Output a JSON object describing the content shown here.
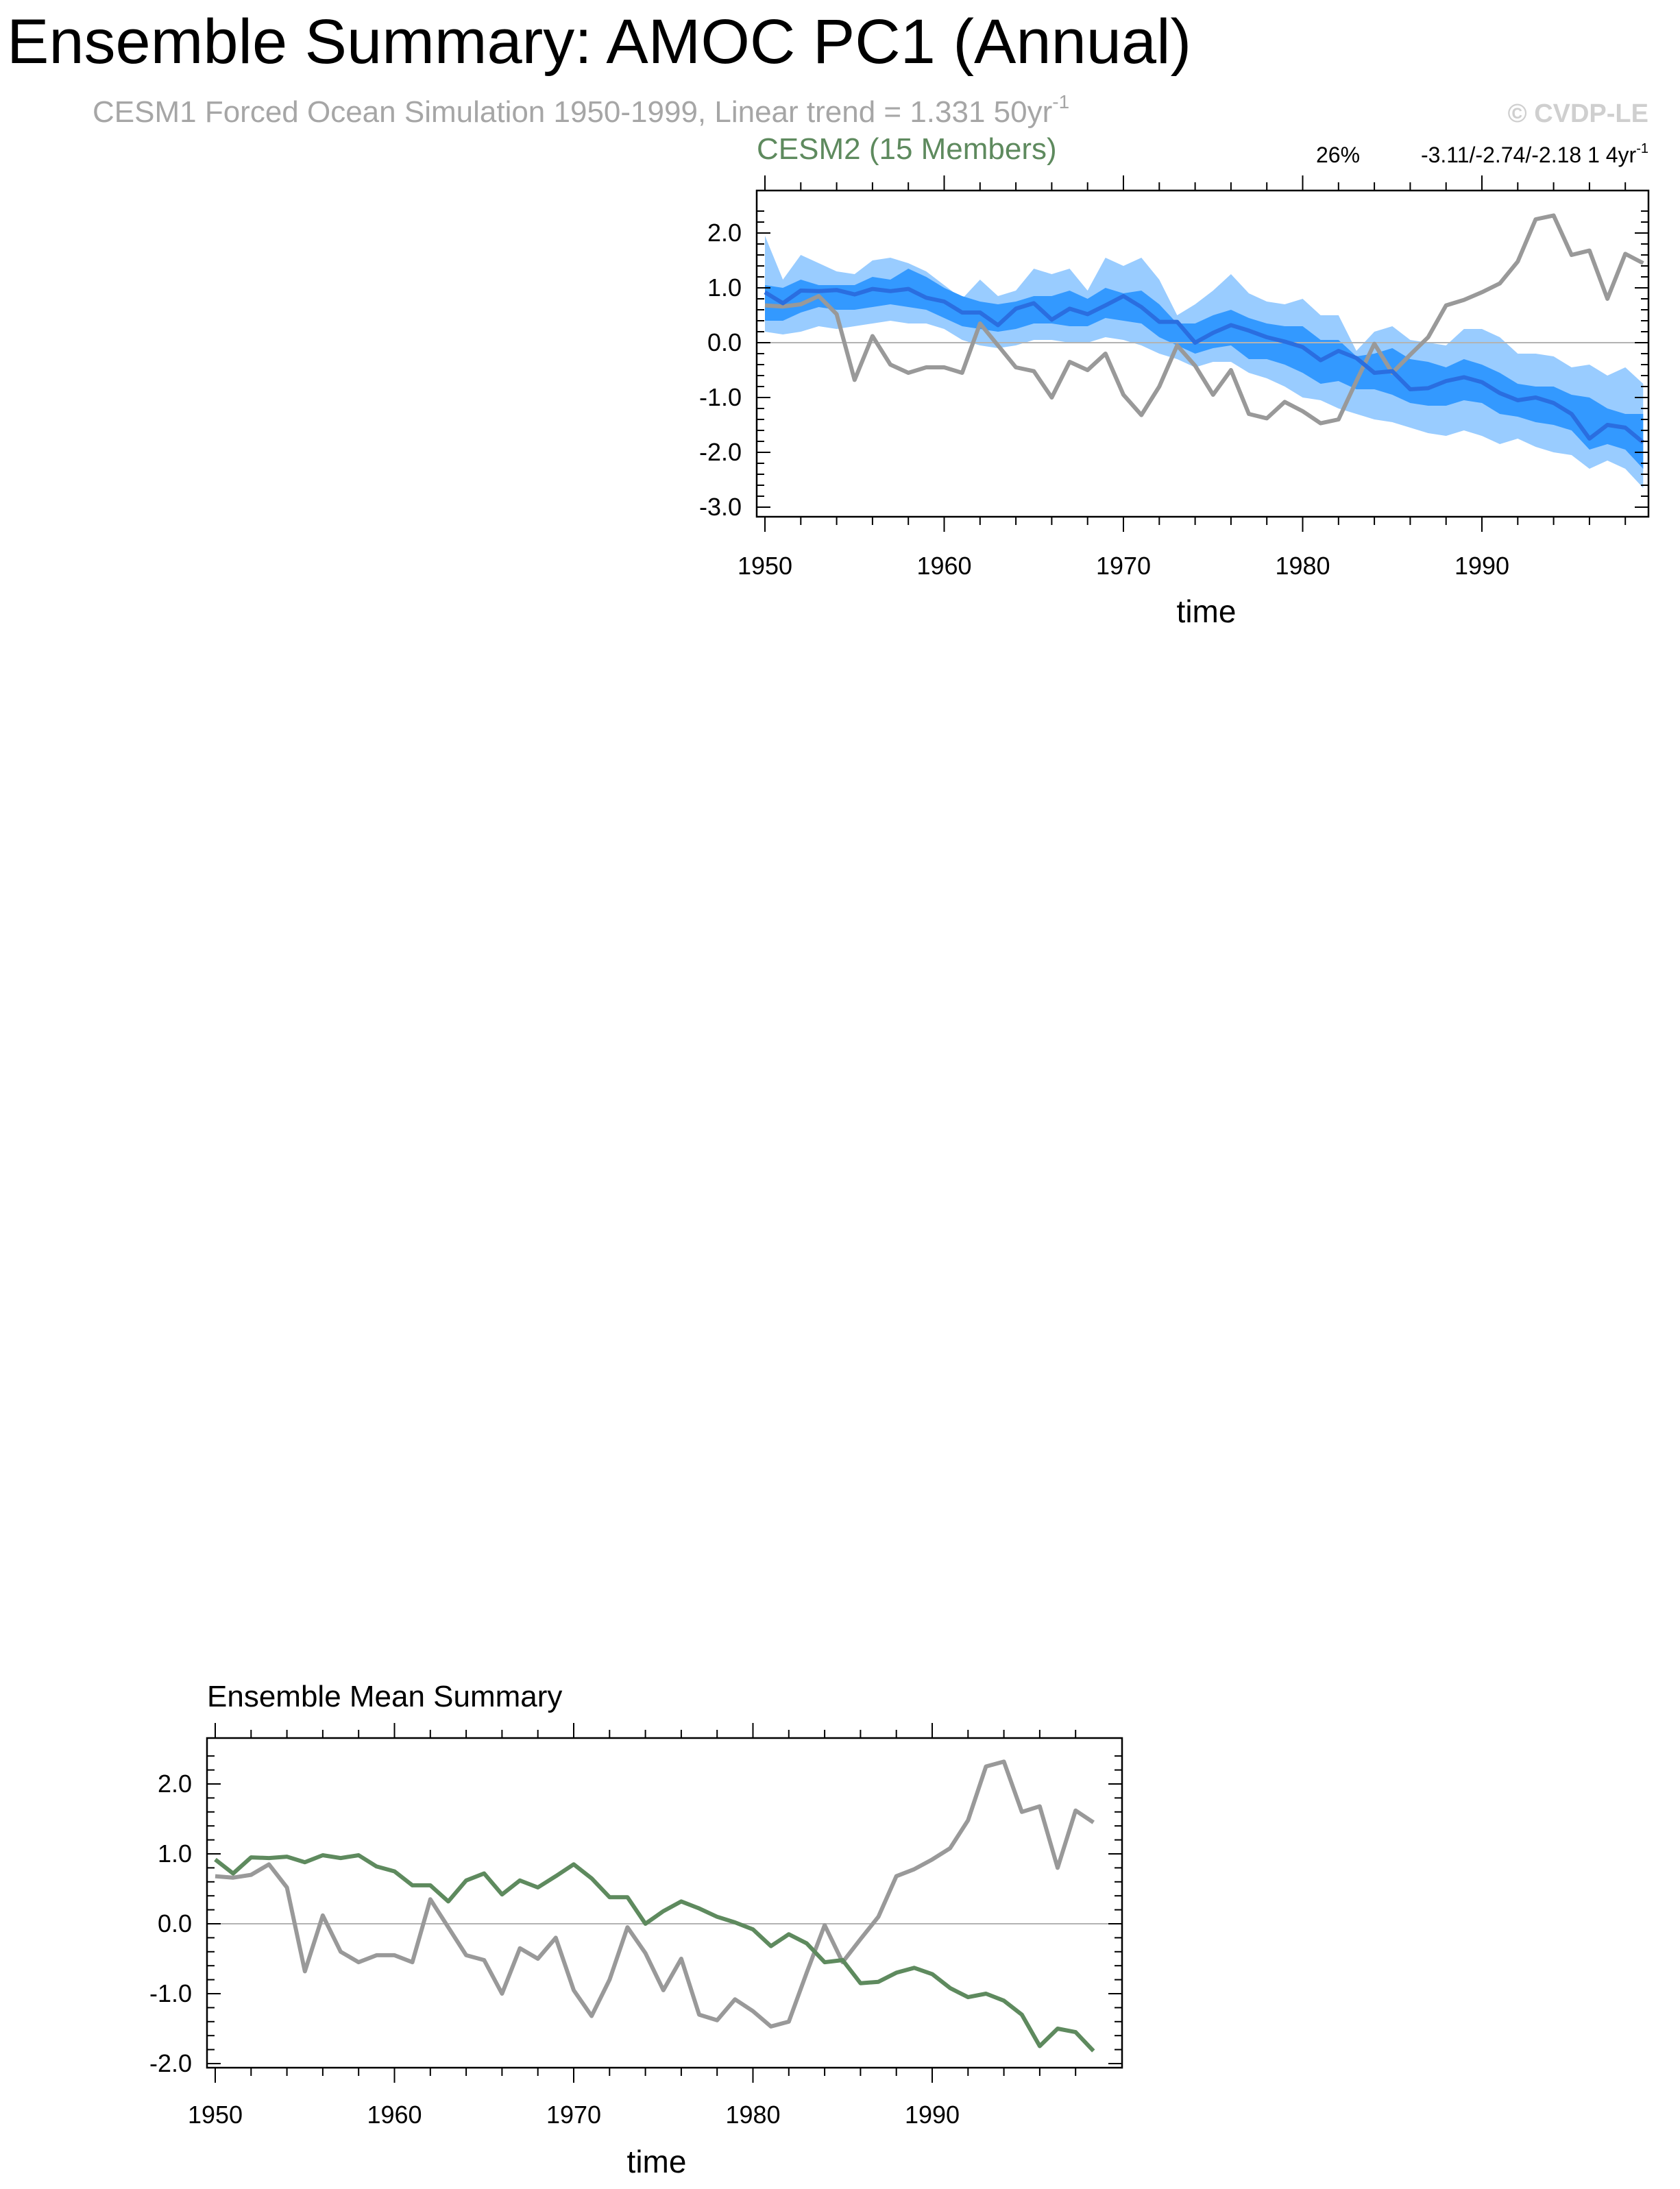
{
  "header": {
    "title": "Ensemble Summary: AMOC PC1 (Annual)",
    "subtitle_main": "CESM1 Forced Ocean Simulation 1950-1999, Linear trend = 1.331 50yr",
    "subtitle_sup": "-1",
    "copyright": "© CVDP-LE"
  },
  "colors": {
    "observed": "#999999",
    "ensemble_mean_top": "#2a6ee0",
    "band_outer": "#99ccff",
    "band_inner": "#3399ff",
    "model_label": "#5e8a5e",
    "ensemble_mean_bottom": "#5e8a5e",
    "text": "#000000",
    "subtitle": "#a6a6a6",
    "copyright": "#cfcfcf"
  },
  "chart_data": [
    {
      "type": "area",
      "name": "model-panel",
      "title": "CESM2 (15 Members)",
      "percent_label": "26%",
      "trend_label_main": "-3.11/-2.74/-2.18 1 4yr",
      "trend_label_sup": "-1",
      "xlabel": "time",
      "ylabel": "",
      "xlim": [
        1950,
        1999
      ],
      "ylim": [
        -3.0,
        2.5
      ],
      "xticks": [
        "1950",
        "1960",
        "1970",
        "1980",
        "1990"
      ],
      "yticks": [
        "2.0",
        "1.0",
        "0.0",
        "-1.0",
        "-2.0",
        "-3.0"
      ],
      "x": [
        1950,
        1951,
        1952,
        1953,
        1954,
        1955,
        1956,
        1957,
        1958,
        1959,
        1960,
        1961,
        1962,
        1963,
        1964,
        1965,
        1966,
        1967,
        1968,
        1969,
        1970,
        1971,
        1972,
        1973,
        1974,
        1975,
        1976,
        1977,
        1978,
        1979,
        1980,
        1981,
        1982,
        1983,
        1984,
        1985,
        1986,
        1987,
        1988,
        1989,
        1990,
        1991,
        1992,
        1993,
        1994,
        1995,
        1996,
        1997,
        1998,
        1999
      ],
      "series": [
        {
          "key": "outer_upper",
          "values": [
            1.95,
            1.15,
            1.6,
            1.45,
            1.3,
            1.25,
            1.5,
            1.55,
            1.45,
            1.3,
            1.05,
            0.8,
            1.15,
            0.85,
            0.95,
            1.35,
            1.25,
            1.35,
            0.95,
            1.55,
            1.4,
            1.55,
            1.15,
            0.5,
            0.7,
            0.95,
            1.25,
            0.9,
            0.75,
            0.7,
            0.8,
            0.5,
            0.5,
            -0.15,
            0.2,
            0.3,
            0.05,
            0.0,
            -0.05,
            0.25,
            0.25,
            0.1,
            -0.2,
            -0.2,
            -0.25,
            -0.45,
            -0.4,
            -0.6,
            -0.45,
            -0.75
          ]
        },
        {
          "key": "inner_upper",
          "values": [
            1.05,
            1.0,
            1.15,
            1.05,
            1.05,
            1.05,
            1.2,
            1.15,
            1.35,
            1.2,
            1.0,
            0.85,
            0.75,
            0.7,
            0.75,
            0.85,
            0.85,
            0.95,
            0.8,
            1.0,
            0.9,
            0.95,
            0.7,
            0.35,
            0.35,
            0.5,
            0.6,
            0.45,
            0.35,
            0.3,
            0.3,
            0.05,
            0.05,
            -0.25,
            -0.2,
            -0.1,
            -0.3,
            -0.35,
            -0.45,
            -0.3,
            -0.4,
            -0.55,
            -0.75,
            -0.8,
            -0.8,
            -0.95,
            -1.0,
            -1.2,
            -1.3,
            -1.3
          ]
        },
        {
          "key": "inner_lower",
          "values": [
            0.4,
            0.4,
            0.55,
            0.65,
            0.6,
            0.6,
            0.65,
            0.7,
            0.65,
            0.6,
            0.45,
            0.3,
            0.25,
            0.2,
            0.25,
            0.35,
            0.35,
            0.3,
            0.3,
            0.45,
            0.4,
            0.35,
            0.1,
            -0.05,
            -0.2,
            -0.1,
            -0.05,
            -0.3,
            -0.3,
            -0.4,
            -0.55,
            -0.75,
            -0.7,
            -0.85,
            -0.85,
            -0.95,
            -1.1,
            -1.15,
            -1.15,
            -1.05,
            -1.1,
            -1.3,
            -1.35,
            -1.45,
            -1.5,
            -1.6,
            -1.95,
            -1.85,
            -1.95,
            -2.3
          ]
        },
        {
          "key": "outer_lower",
          "values": [
            0.2,
            0.15,
            0.2,
            0.3,
            0.25,
            0.3,
            0.35,
            0.4,
            0.35,
            0.35,
            0.25,
            0.05,
            -0.05,
            -0.1,
            -0.05,
            0.05,
            0.05,
            0.0,
            0.0,
            0.1,
            0.05,
            -0.05,
            -0.2,
            -0.3,
            -0.45,
            -0.35,
            -0.35,
            -0.55,
            -0.65,
            -0.8,
            -1.0,
            -1.05,
            -1.2,
            -1.3,
            -1.4,
            -1.45,
            -1.55,
            -1.65,
            -1.7,
            -1.6,
            -1.7,
            -1.85,
            -1.75,
            -1.9,
            -2.0,
            -2.05,
            -2.3,
            -2.15,
            -2.3,
            -2.65
          ]
        },
        {
          "key": "ensemble_mean",
          "name": "",
          "values": [
            0.92,
            0.72,
            0.95,
            0.94,
            0.96,
            0.88,
            0.98,
            0.94,
            0.98,
            0.82,
            0.75,
            0.55,
            0.55,
            0.32,
            0.62,
            0.72,
            0.42,
            0.62,
            0.52,
            0.68,
            0.85,
            0.65,
            0.38,
            0.38,
            0.0,
            0.18,
            0.32,
            0.22,
            0.1,
            0.02,
            -0.08,
            -0.32,
            -0.15,
            -0.28,
            -0.55,
            -0.52,
            -0.85,
            -0.83,
            -0.7,
            -0.63,
            -0.72,
            -0.92,
            -1.05,
            -1.0,
            -1.1,
            -1.3,
            -1.75,
            -1.5,
            -1.55,
            -1.82
          ]
        },
        {
          "key": "observed",
          "name": "",
          "values": [
            0.68,
            0.66,
            0.7,
            0.85,
            0.52,
            -0.68,
            0.12,
            -0.4,
            -0.55,
            -0.45,
            -0.45,
            -0.55,
            0.35,
            -0.05,
            -0.45,
            -0.52,
            -1.0,
            -0.35,
            -0.5,
            -0.2,
            -0.95,
            -1.32,
            -0.8,
            -0.05,
            -0.42,
            -0.95,
            -0.5,
            -1.3,
            -1.38,
            -1.08,
            -1.25,
            -1.47,
            -1.4,
            -0.7,
            -0.02,
            -0.55,
            -0.22,
            0.1,
            0.68,
            0.78,
            0.92,
            1.08,
            1.48,
            2.25,
            2.32,
            1.6,
            1.68,
            0.8,
            1.62,
            1.45
          ]
        }
      ]
    },
    {
      "type": "line",
      "name": "ensemble-mean-panel",
      "title": "Ensemble Mean Summary",
      "xlabel": "time",
      "ylabel": "",
      "xlim": [
        1950,
        1999
      ],
      "ylim": [
        -2.0,
        2.5
      ],
      "xticks": [
        "1950",
        "1960",
        "1970",
        "1980",
        "1990"
      ],
      "yticks": [
        "2.0",
        "1.0",
        "0.0",
        "-1.0",
        "-2.0"
      ],
      "x": [
        1950,
        1951,
        1952,
        1953,
        1954,
        1955,
        1956,
        1957,
        1958,
        1959,
        1960,
        1961,
        1962,
        1963,
        1964,
        1965,
        1966,
        1967,
        1968,
        1969,
        1970,
        1971,
        1972,
        1973,
        1974,
        1975,
        1976,
        1977,
        1978,
        1979,
        1980,
        1981,
        1982,
        1983,
        1984,
        1985,
        1986,
        1987,
        1988,
        1989,
        1990,
        1991,
        1992,
        1993,
        1994,
        1995,
        1996,
        1997,
        1998,
        1999
      ],
      "series": [
        {
          "key": "ensemble_mean",
          "name": "",
          "values": [
            0.92,
            0.72,
            0.95,
            0.94,
            0.96,
            0.88,
            0.98,
            0.94,
            0.98,
            0.82,
            0.75,
            0.55,
            0.55,
            0.32,
            0.62,
            0.72,
            0.42,
            0.62,
            0.52,
            0.68,
            0.85,
            0.65,
            0.38,
            0.38,
            0.0,
            0.18,
            0.32,
            0.22,
            0.1,
            0.02,
            -0.08,
            -0.32,
            -0.15,
            -0.28,
            -0.55,
            -0.52,
            -0.85,
            -0.83,
            -0.7,
            -0.63,
            -0.72,
            -0.92,
            -1.05,
            -1.0,
            -1.1,
            -1.3,
            -1.75,
            -1.5,
            -1.55,
            -1.82
          ]
        },
        {
          "key": "observed",
          "name": "",
          "values": [
            0.68,
            0.66,
            0.7,
            0.85,
            0.52,
            -0.68,
            0.12,
            -0.4,
            -0.55,
            -0.45,
            -0.45,
            -0.55,
            0.35,
            -0.05,
            -0.45,
            -0.52,
            -1.0,
            -0.35,
            -0.5,
            -0.2,
            -0.95,
            -1.32,
            -0.8,
            -0.05,
            -0.42,
            -0.95,
            -0.5,
            -1.3,
            -1.38,
            -1.08,
            -1.25,
            -1.47,
            -1.4,
            -0.7,
            -0.02,
            -0.55,
            -0.22,
            0.1,
            0.68,
            0.78,
            0.92,
            1.08,
            1.48,
            2.25,
            2.32,
            1.6,
            1.68,
            0.8,
            1.62,
            1.45
          ]
        }
      ]
    }
  ]
}
